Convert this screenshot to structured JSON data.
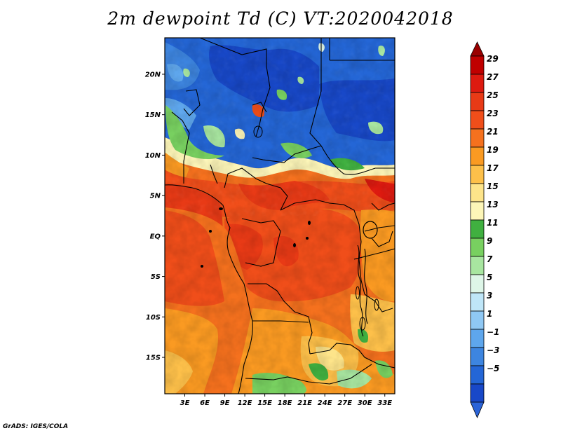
{
  "title": "2m dewpoint Td (C) VT:2020042018",
  "credit": "GrADS: IGES/COLA",
  "map": {
    "lat_labels": [
      "20N",
      "15N",
      "10N",
      "5N",
      "EQ",
      "5S",
      "10S",
      "15S"
    ],
    "lon_labels": [
      "3E",
      "6E",
      "9E",
      "12E",
      "15E",
      "18E",
      "21E",
      "24E",
      "27E",
      "30E",
      "33E"
    ],
    "lat_range": [
      -19.5,
      24.5
    ],
    "lon_range": [
      0,
      34.5
    ]
  },
  "colorbar": {
    "labels": [
      "29",
      "27",
      "25",
      "23",
      "21",
      "19",
      "17",
      "15",
      "13",
      "11",
      "9",
      "7",
      "5",
      "3",
      "1",
      "−1",
      "−3",
      "−5"
    ],
    "colors": [
      "#c00000",
      "#dd1a10",
      "#e83a16",
      "#f04e1a",
      "#f5711e",
      "#fa9a22",
      "#fdc04a",
      "#fde48a",
      "#fdf6b8",
      "#40b040",
      "#78d060",
      "#a8e6a0",
      "#def6e8",
      "#bfe6f8",
      "#8fc8f4",
      "#5ea6ec",
      "#3d85e0",
      "#2466d6",
      "#1848c8"
    ],
    "top_arrow_color": "#9a0000",
    "bottom_arrow_color": "#2b64d8"
  }
}
